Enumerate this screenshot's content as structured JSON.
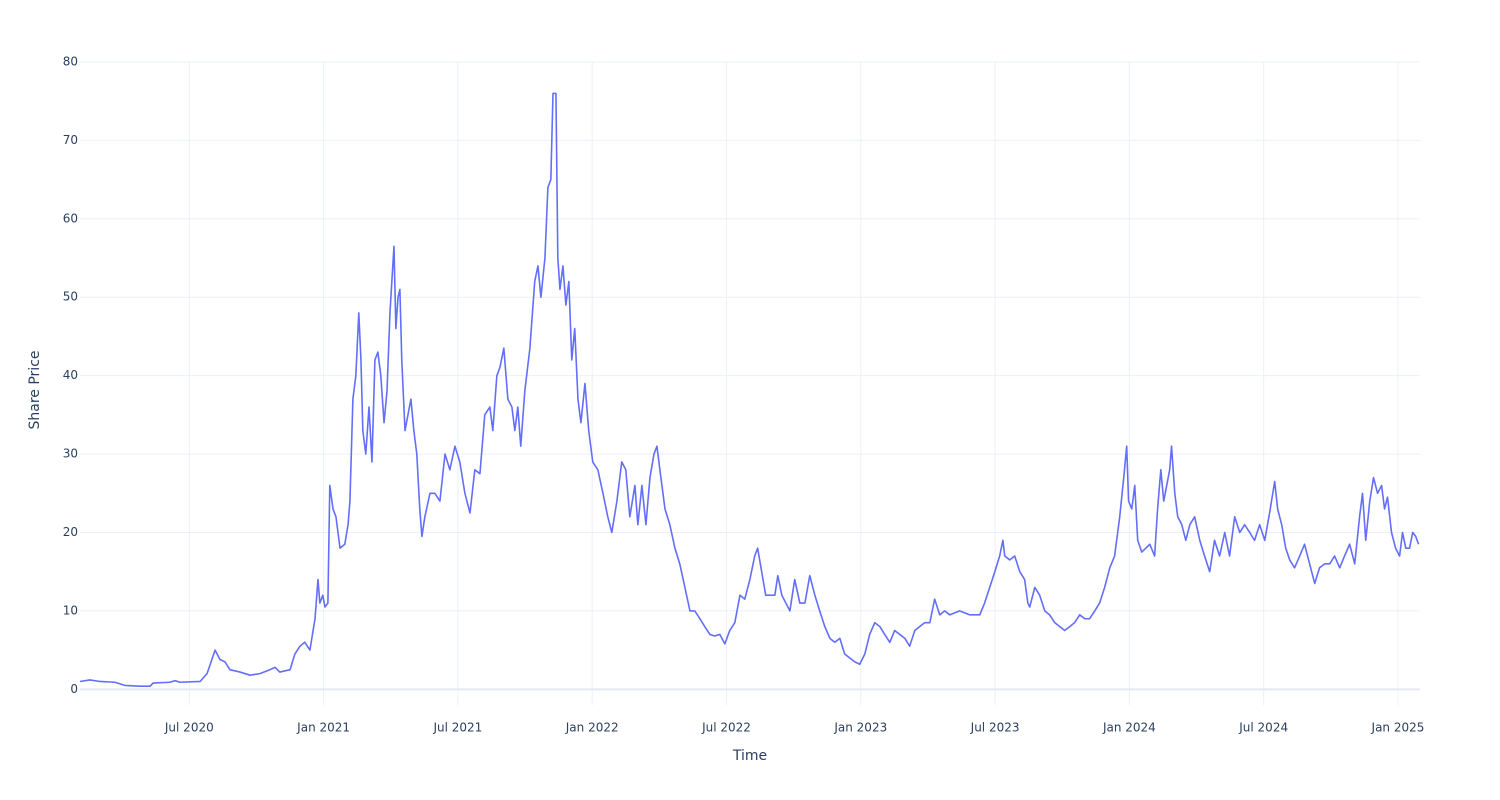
{
  "chart_data": {
    "type": "line",
    "x_label": "Time",
    "y_label": "Share Price",
    "color": "#636efa",
    "grid": true,
    "xlim": [
      2020.093,
      2025.082
    ],
    "ylim": [
      -2,
      80
    ],
    "xticks": [
      {
        "value": 2020.5,
        "label": "Jul 2020"
      },
      {
        "value": 2021,
        "label": "Jan 2021"
      },
      {
        "value": 2021.5,
        "label": "Jul 2021"
      },
      {
        "value": 2022,
        "label": "Jan 2022"
      },
      {
        "value": 2022.5,
        "label": "Jul 2022"
      },
      {
        "value": 2023,
        "label": "Jan 2023"
      },
      {
        "value": 2023.5,
        "label": "Jul 2023"
      },
      {
        "value": 2024,
        "label": "Jan 2024"
      },
      {
        "value": 2024.5,
        "label": "Jul 2024"
      },
      {
        "value": 2025,
        "label": "Jan 2025"
      }
    ],
    "yticks": [
      0,
      10,
      20,
      30,
      40,
      50,
      60,
      70,
      80
    ],
    "x": [
      2020.093,
      2020.13,
      2020.167,
      2020.223,
      2020.26,
      2020.316,
      2020.354,
      2020.365,
      2020.428,
      2020.447,
      2020.465,
      2020.54,
      2020.566,
      2020.596,
      2020.614,
      2020.633,
      2020.651,
      2020.689,
      2020.726,
      2020.763,
      2020.8,
      2020.819,
      2020.837,
      2020.875,
      2020.893,
      2020.912,
      2020.93,
      2020.949,
      2020.968,
      2020.979,
      2020.986,
      2020.997,
      2021.005,
      2021.016,
      2021.023,
      2021.035,
      2021.046,
      2021.061,
      2021.079,
      2021.091,
      2021.098,
      2021.109,
      2021.12,
      2021.131,
      2021.139,
      2021.146,
      2021.157,
      2021.169,
      2021.18,
      2021.191,
      2021.202,
      2021.213,
      2021.225,
      2021.236,
      2021.247,
      2021.262,
      2021.269,
      2021.277,
      2021.284,
      2021.291,
      2021.303,
      2021.314,
      2021.325,
      2021.336,
      2021.347,
      2021.358,
      2021.366,
      2021.377,
      2021.396,
      2021.414,
      2021.433,
      2021.452,
      2021.47,
      2021.489,
      2021.507,
      2021.526,
      2021.545,
      2021.563,
      2021.582,
      2021.6,
      2021.619,
      2021.63,
      2021.645,
      2021.656,
      2021.671,
      2021.686,
      2021.701,
      2021.712,
      2021.723,
      2021.734,
      2021.749,
      2021.768,
      2021.786,
      2021.798,
      2021.809,
      2021.824,
      2021.835,
      2021.846,
      2021.854,
      2021.865,
      2021.872,
      2021.88,
      2021.891,
      2021.902,
      2021.913,
      2021.924,
      2021.935,
      2021.947,
      2021.958,
      2021.973,
      2021.987,
      2022.002,
      2022.021,
      2022.04,
      2022.058,
      2022.073,
      2022.092,
      2022.11,
      2022.125,
      2022.14,
      2022.159,
      2022.17,
      2022.185,
      2022.2,
      2022.215,
      2022.23,
      2022.241,
      2022.252,
      2022.271,
      2022.289,
      2022.308,
      2022.326,
      2022.345,
      2022.364,
      2022.382,
      2022.401,
      2022.419,
      2022.438,
      2022.456,
      2022.475,
      2022.494,
      2022.512,
      2022.531,
      2022.55,
      2022.568,
      2022.587,
      2022.605,
      2022.616,
      2022.631,
      2022.646,
      2022.661,
      2022.68,
      2022.691,
      2022.706,
      2022.721,
      2022.736,
      2022.754,
      2022.773,
      2022.792,
      2022.81,
      2022.829,
      2022.847,
      2022.866,
      2022.885,
      2022.903,
      2022.922,
      2022.94,
      2022.959,
      2022.978,
      2022.996,
      2023.015,
      2023.033,
      2023.052,
      2023.071,
      2023.089,
      2023.108,
      2023.126,
      2023.145,
      2023.164,
      2023.182,
      2023.201,
      2023.219,
      2023.238,
      2023.257,
      2023.275,
      2023.294,
      2023.312,
      2023.331,
      2023.368,
      2023.406,
      2023.443,
      2023.461,
      2023.48,
      2023.499,
      2023.517,
      2023.529,
      2023.536,
      2023.555,
      2023.573,
      2023.592,
      2023.61,
      2023.622,
      2023.629,
      2023.648,
      2023.666,
      2023.685,
      2023.703,
      2023.722,
      2023.741,
      2023.759,
      2023.778,
      2023.796,
      2023.815,
      2023.834,
      2023.852,
      2023.871,
      2023.889,
      2023.908,
      2023.927,
      2023.945,
      2023.964,
      2023.979,
      2023.99,
      2023.997,
      2024.009,
      2024.02,
      2024.031,
      2024.046,
      2024.061,
      2024.076,
      2024.094,
      2024.105,
      2024.117,
      2024.128,
      2024.139,
      2024.15,
      2024.157,
      2024.169,
      2024.18,
      2024.195,
      2024.21,
      2024.225,
      2024.243,
      2024.262,
      2024.28,
      2024.299,
      2024.317,
      2024.336,
      2024.355,
      2024.373,
      2024.392,
      2024.411,
      2024.429,
      2024.448,
      2024.466,
      2024.485,
      2024.504,
      2024.522,
      2024.541,
      2024.552,
      2024.567,
      2024.582,
      2024.597,
      2024.615,
      2024.634,
      2024.652,
      2024.671,
      2024.69,
      2024.708,
      2024.727,
      2024.746,
      2024.764,
      2024.783,
      2024.801,
      2024.82,
      2024.839,
      2024.857,
      2024.868,
      2024.88,
      2024.895,
      2024.909,
      2024.924,
      2024.939,
      2024.95,
      2024.961,
      2024.976,
      2024.991,
      2025.006,
      2025.017,
      2025.029,
      2025.043,
      2025.055,
      2025.066,
      2025.077
    ],
    "values": [
      1.0,
      1.2,
      1.0,
      0.9,
      0.5,
      0.4,
      0.4,
      0.8,
      0.9,
      1.1,
      0.9,
      1.0,
      2.0,
      5.0,
      3.8,
      3.5,
      2.5,
      2.2,
      1.8,
      2.0,
      2.5,
      2.8,
      2.2,
      2.5,
      4.5,
      5.5,
      6.0,
      5.0,
      9,
      14,
      11,
      12,
      10.5,
      11,
      26,
      23,
      22,
      18,
      18.5,
      21,
      24,
      37,
      40,
      48,
      42,
      33,
      30,
      36,
      29,
      42,
      43,
      40,
      34,
      38,
      48,
      56.5,
      46,
      50,
      51,
      42,
      33,
      35,
      37,
      33,
      30,
      23,
      19.5,
      22,
      25,
      25,
      24,
      30,
      28,
      31,
      29,
      25,
      22.5,
      28,
      27.5,
      35,
      36,
      33,
      40,
      41,
      43.5,
      37,
      36,
      33,
      36,
      31,
      38,
      43.5,
      52,
      54,
      50,
      55,
      64,
      65,
      76,
      76,
      55,
      51,
      54,
      49,
      52,
      42,
      46,
      37,
      34,
      39,
      33,
      29,
      28,
      25,
      22,
      20,
      24,
      29,
      28,
      22,
      26,
      21,
      26,
      21,
      27,
      30,
      31,
      28,
      23,
      21,
      18,
      16,
      13,
      10,
      10,
      9,
      8,
      7,
      6.8,
      7,
      5.8,
      7.5,
      8.5,
      12,
      11.5,
      14,
      17,
      18,
      15,
      12,
      12,
      12,
      14.5,
      12,
      11,
      10,
      14,
      11,
      11,
      14.5,
      12,
      10,
      8,
      6.5,
      6,
      6.5,
      4.5,
      4,
      3.5,
      3.2,
      4.5,
      7,
      8.5,
      8,
      7,
      6,
      7.5,
      7,
      6.5,
      5.5,
      7.5,
      8,
      8.5,
      8.5,
      11.5,
      9.5,
      10,
      9.5,
      10,
      9.5,
      9.5,
      11,
      13,
      15,
      17,
      19,
      17,
      16.5,
      17,
      15,
      14,
      11,
      10.5,
      13,
      12,
      10,
      9.5,
      8.5,
      8,
      7.5,
      8,
      8.5,
      9.5,
      9,
      9,
      10,
      11,
      13,
      15.5,
      17,
      22,
      27,
      31,
      24,
      23,
      26,
      19,
      17.5,
      18,
      18.5,
      17,
      23,
      28,
      24,
      26,
      28,
      31,
      25,
      22,
      21,
      19,
      21,
      22,
      19,
      17,
      15,
      19,
      17,
      20,
      17,
      22,
      20,
      21,
      20,
      19,
      21,
      19,
      22.5,
      26.5,
      23,
      21,
      18,
      16.5,
      15.5,
      17,
      18.5,
      16,
      13.5,
      15.5,
      16,
      16,
      17,
      15.5,
      17,
      18.5,
      16,
      22,
      25,
      19,
      24,
      27,
      25,
      26,
      23,
      24.5,
      20,
      18,
      17,
      20,
      18,
      18,
      20,
      19.5,
      18.5
    ]
  }
}
